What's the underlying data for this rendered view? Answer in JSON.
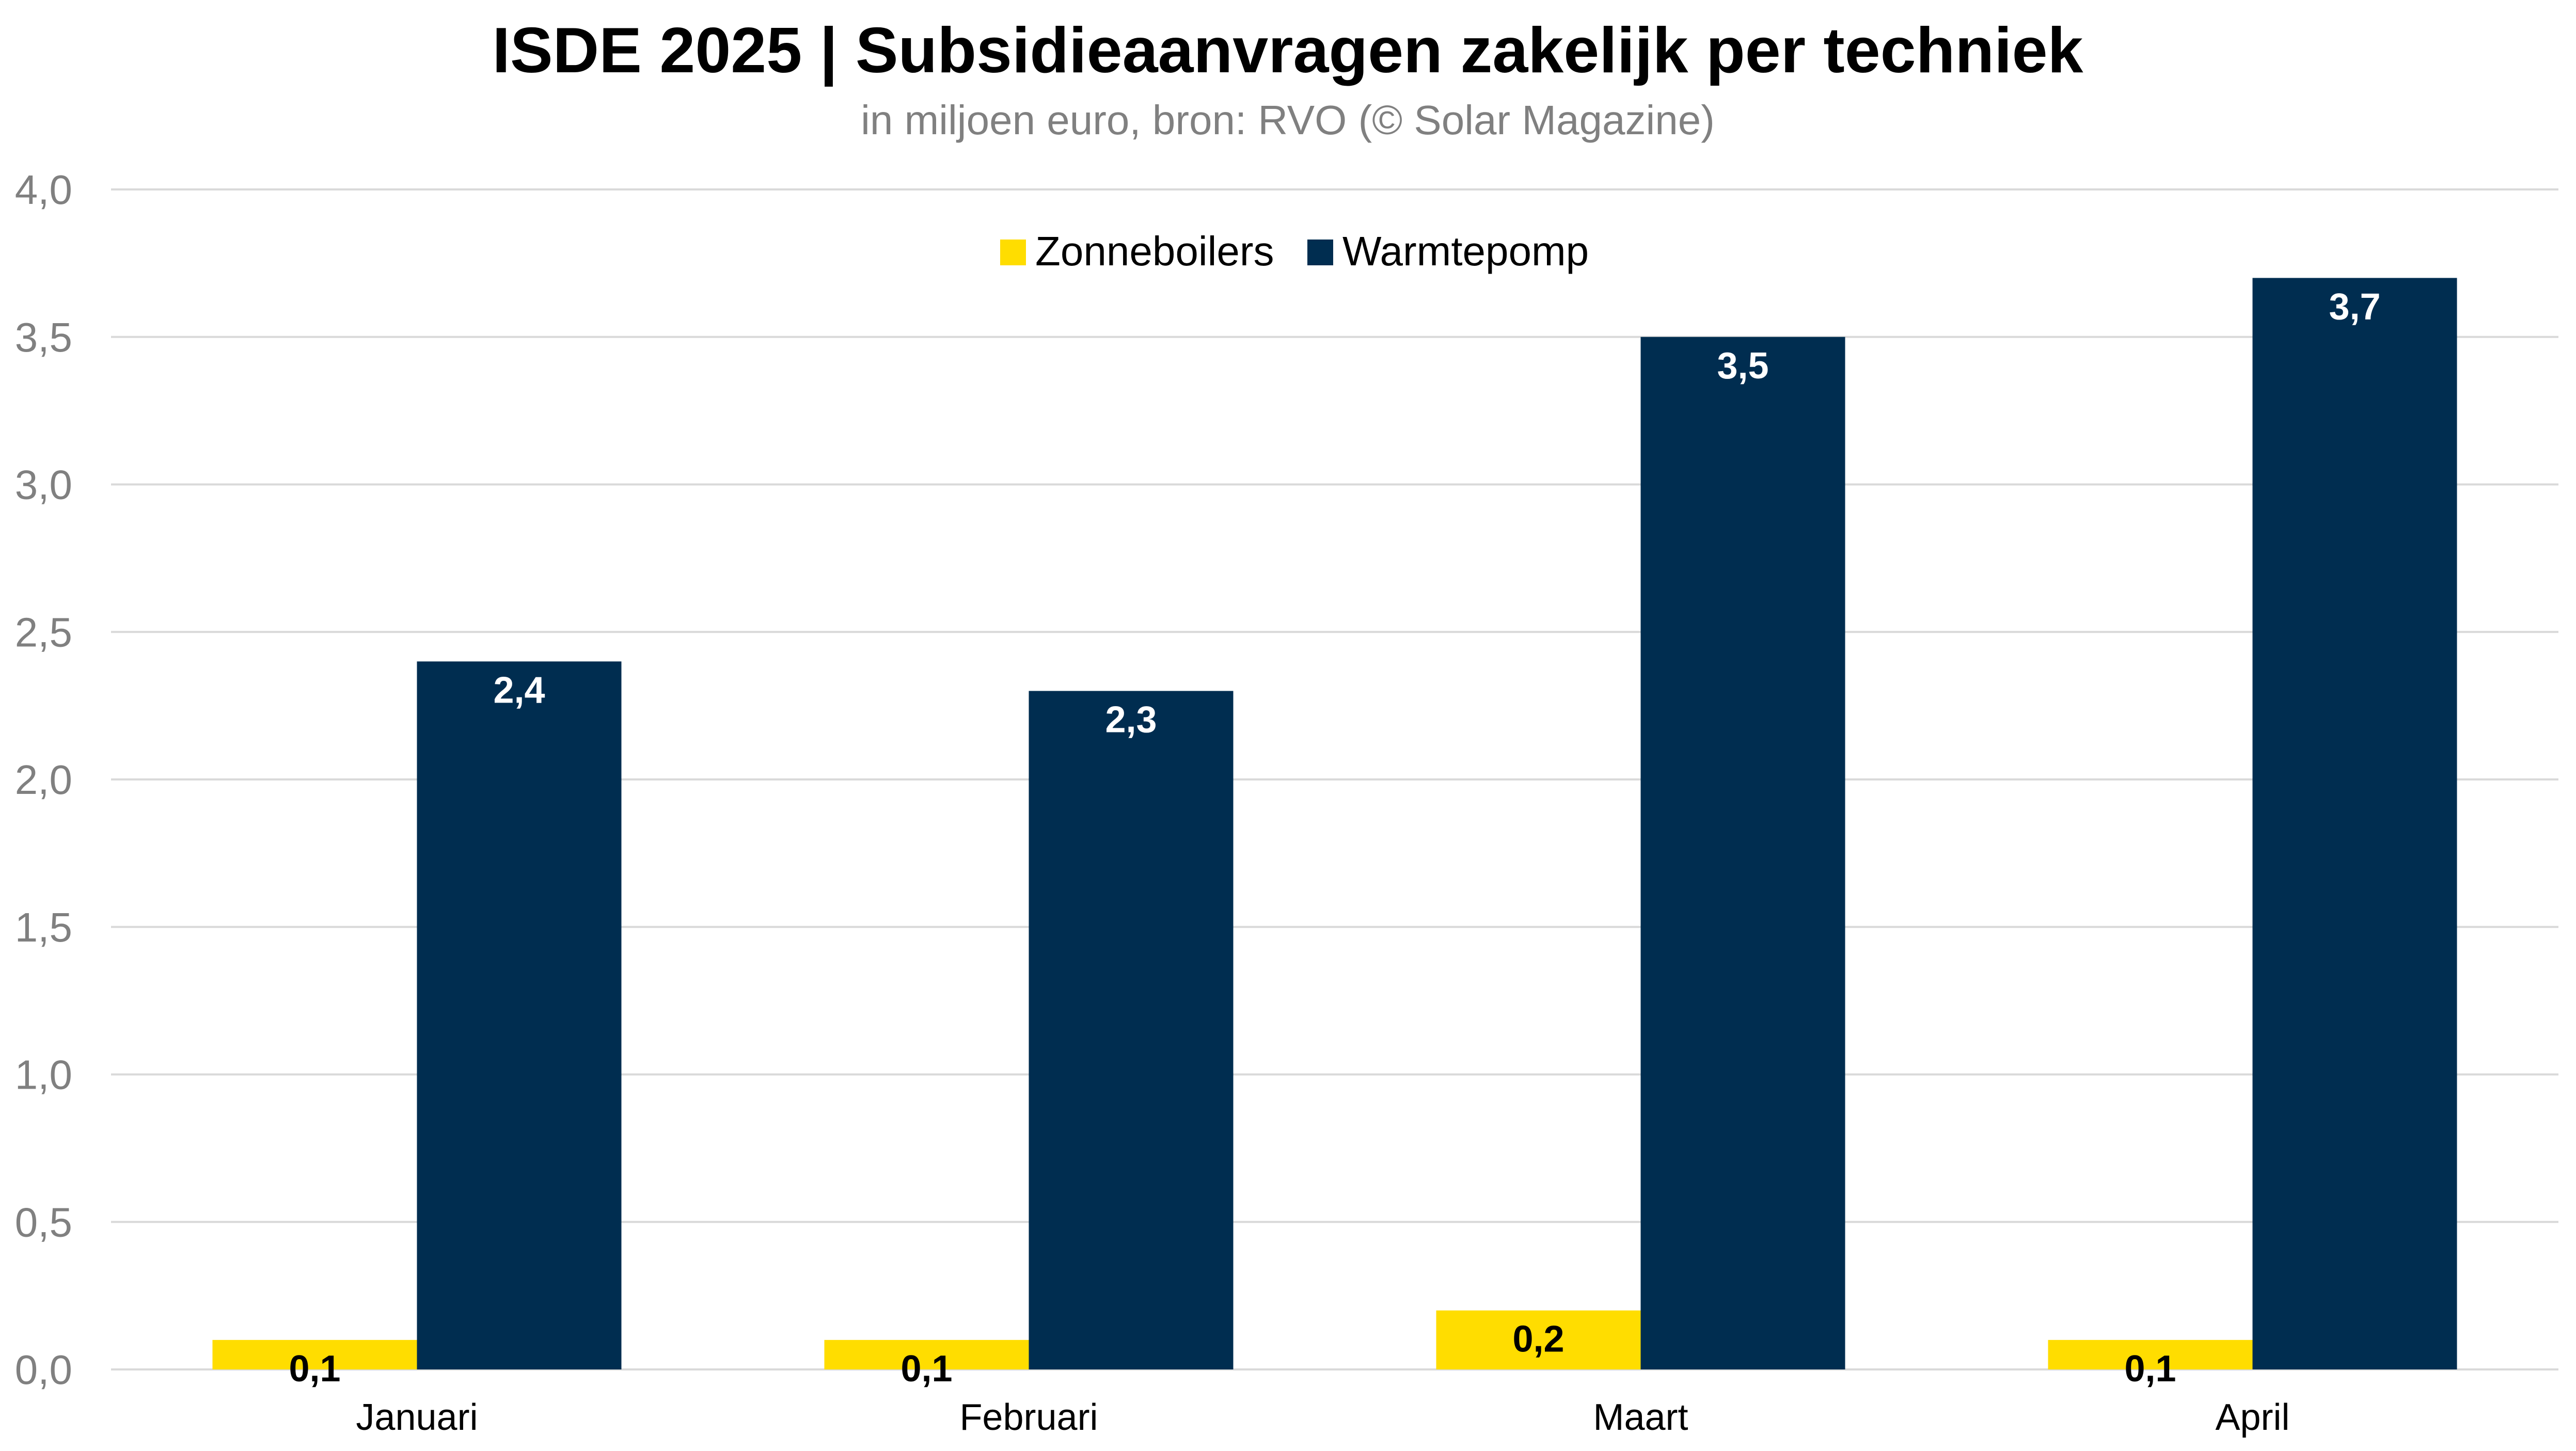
{
  "chart_data": {
    "type": "bar",
    "title": "ISDE 2025 | Subsidieaanvragen zakelijk per techniek",
    "subtitle": "in miljoen euro, bron: RVO (© Solar Magazine)",
    "categories": [
      "Januari",
      "Februari",
      "Maart",
      "April"
    ],
    "series": [
      {
        "name": "Zonneboilers",
        "color": "#FFDD00",
        "label_color": "#000000",
        "values": [
          0.1,
          0.1,
          0.2,
          0.1
        ],
        "labels": [
          "0,1",
          "0,1",
          "0,2",
          "0,1"
        ]
      },
      {
        "name": "Warmtepomp",
        "color": "#002D50",
        "label_color": "#FFFFFF",
        "values": [
          2.4,
          2.3,
          3.5,
          3.7
        ],
        "labels": [
          "2,4",
          "2,3",
          "3,5",
          "3,7"
        ]
      }
    ],
    "ylim": [
      0,
      4
    ],
    "yticks": [
      0,
      0.5,
      1,
      1.5,
      2,
      2.5,
      3,
      3.5,
      4
    ],
    "ytick_labels": [
      "0,0",
      "0,5",
      "1,0",
      "1,5",
      "2,0",
      "2,5",
      "3,0",
      "3,5",
      "4,0"
    ],
    "xlabel": "",
    "ylabel": "",
    "grid": true,
    "legend_position": "top-center",
    "gridline_color": "#D9D9D9"
  }
}
